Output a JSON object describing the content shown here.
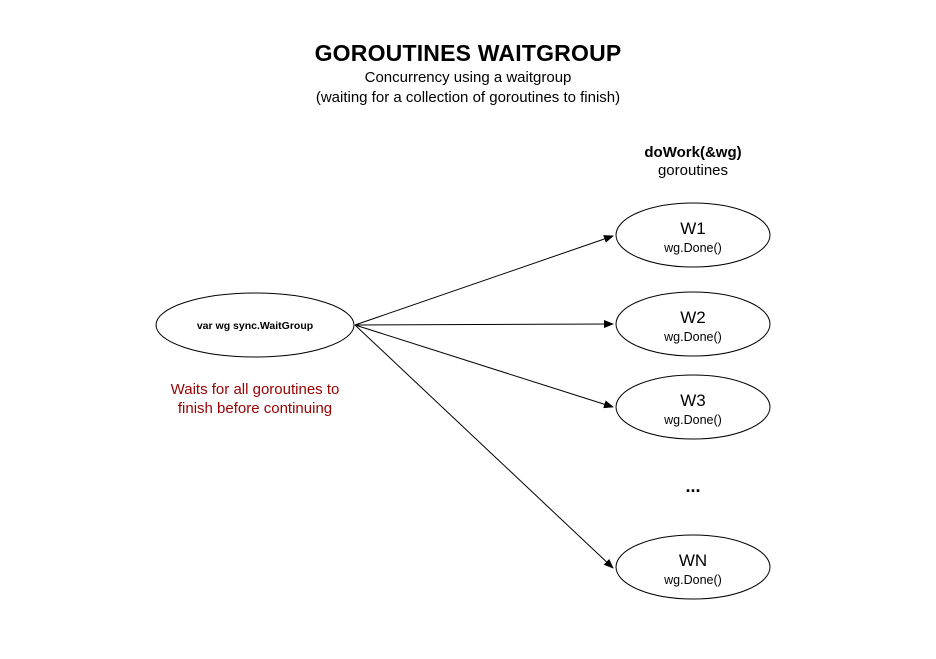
{
  "title": "GOROUTINES WAITGROUP",
  "subtitle_line1": "Concurrency using a waitgroup",
  "subtitle_line2": "(waiting for a collection of goroutines to finish)",
  "source_node": {
    "label": "var wg sync.WaitGroup"
  },
  "note": {
    "text_line1": "Waits for all goroutines to",
    "text_line2": "finish before continuing",
    "color": "#990000"
  },
  "workers_header": {
    "line1": "doWork(&wg)",
    "line2": "goroutines"
  },
  "workers": [
    {
      "name": "W1",
      "action": "wg.Done()"
    },
    {
      "name": "W2",
      "action": "wg.Done()"
    },
    {
      "name": "W3",
      "action": "wg.Done()"
    },
    {
      "name": "WN",
      "action": "wg.Done()"
    }
  ],
  "ellipsis": "..."
}
